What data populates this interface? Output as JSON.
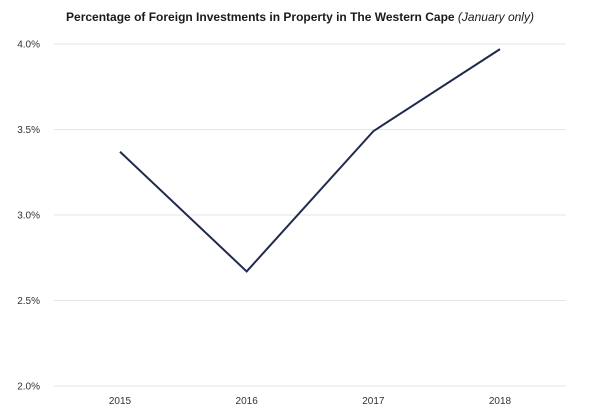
{
  "chart_data": {
    "type": "line",
    "title": "Percentage of Foreign Investments in Property in The Western Cape",
    "title_note": "(January only)",
    "categories": [
      "2015",
      "2016",
      "2017",
      "2018"
    ],
    "series": [
      {
        "values": [
          3.37,
          2.67,
          3.49,
          3.97
        ]
      }
    ],
    "xlabel": "",
    "ylabel": "",
    "ylim": [
      2.0,
      4.0
    ],
    "yticks": [
      2.0,
      2.5,
      3.0,
      3.5,
      4.0
    ],
    "ytick_labels": [
      "2.0%",
      "2.5%",
      "3.0%",
      "3.5%",
      "4.0%"
    ],
    "grid": true,
    "line_color": "#1f2a4d",
    "grid_color": "#e6e6e6"
  }
}
